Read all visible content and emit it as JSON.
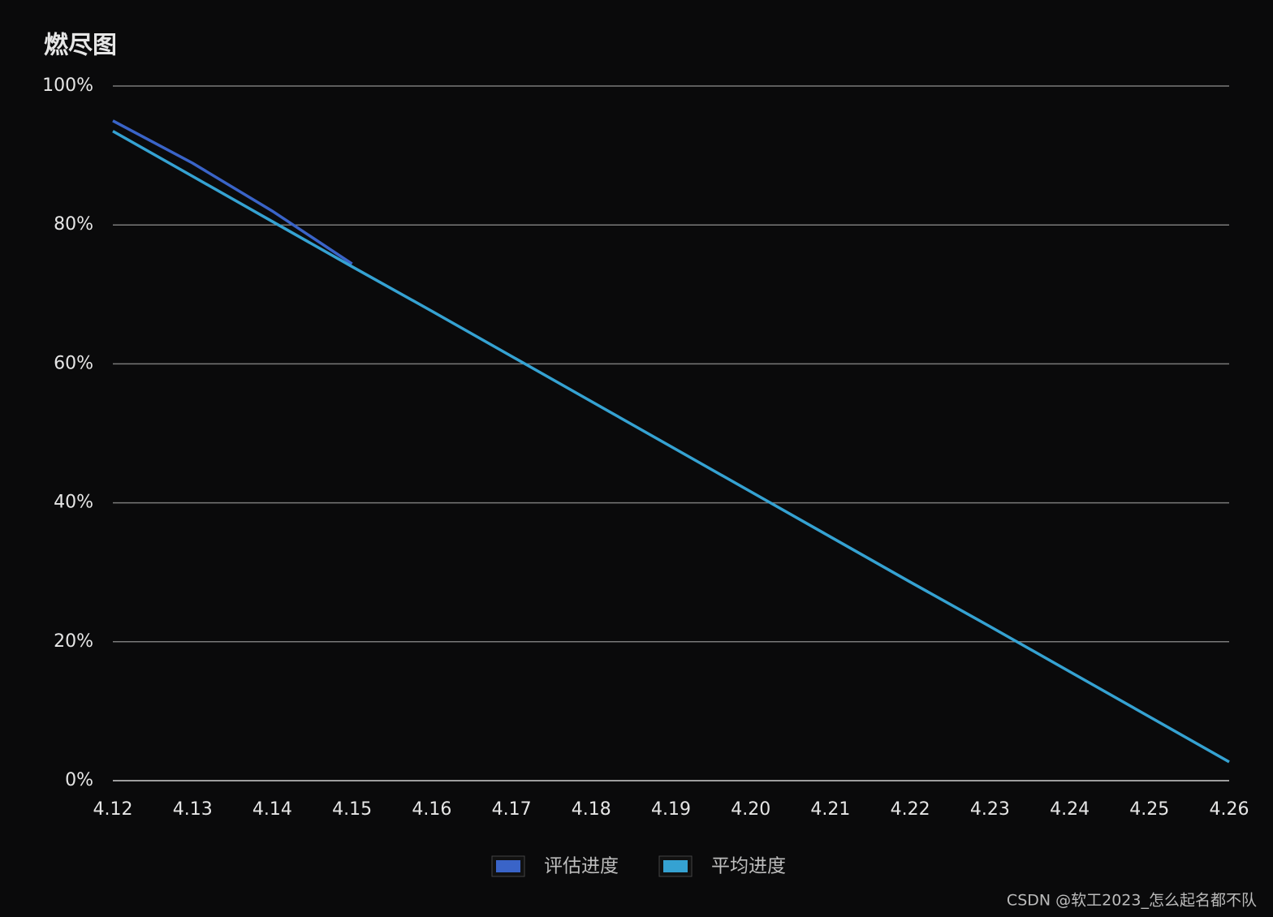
{
  "chart_data": {
    "type": "line",
    "title": "燃尽图",
    "categories": [
      "4.12",
      "4.13",
      "4.14",
      "4.15",
      "4.16",
      "4.17",
      "4.18",
      "4.19",
      "4.20",
      "4.21",
      "4.22",
      "4.23",
      "4.24",
      "4.25",
      "4.26"
    ],
    "series": [
      {
        "name": "评估进度",
        "color": "#3a64c8",
        "values": [
          95,
          88.9,
          82,
          74.4,
          null,
          null,
          null,
          null,
          null,
          null,
          null,
          null,
          null,
          null,
          null
        ]
      },
      {
        "name": "平均进度",
        "color": "#35a2d2",
        "values": [
          93.5,
          87.0,
          80.5,
          74.0,
          67.6,
          61.1,
          54.6,
          48.1,
          41.6,
          35.1,
          28.6,
          22.2,
          15.7,
          9.2,
          2.7
        ]
      }
    ],
    "ylim": [
      0,
      100
    ],
    "yticks": [
      {
        "value": 0,
        "label": "0%"
      },
      {
        "value": 20,
        "label": "20%"
      },
      {
        "value": 40,
        "label": "40%"
      },
      {
        "value": 60,
        "label": "60%"
      },
      {
        "value": 80,
        "label": "80%"
      },
      {
        "value": 100,
        "label": "100%"
      }
    ],
    "grid": true,
    "legend": "bottom",
    "watermark": "CSDN @软工2023_怎么起名都不队"
  }
}
